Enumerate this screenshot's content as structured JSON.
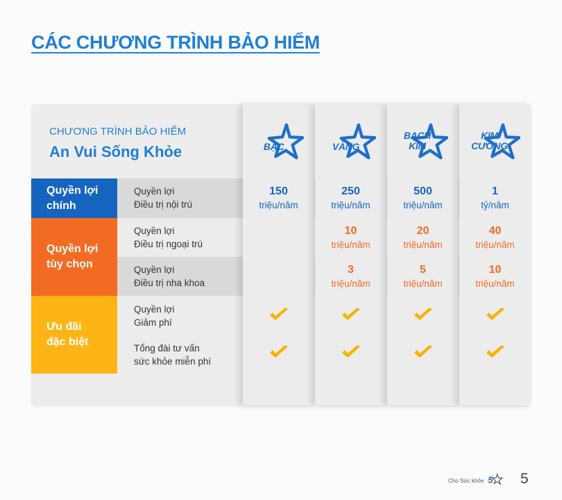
{
  "heading": "CÁC CHƯƠNG TRÌNH BẢO HIỂM",
  "header": {
    "subtitle": "CHƯƠNG TRÌNH BẢO HIỂM",
    "product_name": "An Vui Sống Khỏe"
  },
  "tiers": [
    {
      "line1": "BẠC",
      "line2": ""
    },
    {
      "line1": "VÀNG",
      "line2": ""
    },
    {
      "line1": "BẠCH",
      "line2": "KIM"
    },
    {
      "line1": "KIM",
      "line2": "CƯƠNG"
    }
  ],
  "categories": [
    {
      "line1": "Quyền lợi",
      "line2": "chính",
      "color": "#1565c0"
    },
    {
      "line1": "Quyền lợi",
      "line2": "tùy chọn",
      "color": "#f26b22"
    },
    {
      "line1": "Ưu đãi",
      "line2": "đặc biệt",
      "color": "#fdb515"
    }
  ],
  "rows": [
    {
      "label1": "Quyền lợi",
      "label2": "Điều trị nội trú",
      "values": [
        {
          "num": "150",
          "unit": "triệu/năm"
        },
        {
          "num": "250",
          "unit": "triệu/năm"
        },
        {
          "num": "500",
          "unit": "triệu/năm"
        },
        {
          "num": "1",
          "unit": "tỷ/năm"
        }
      ]
    },
    {
      "label1": "Quyền lợi",
      "label2": "Điều trị ngoại trú",
      "values": [
        {
          "num": "",
          "unit": ""
        },
        {
          "num": "10",
          "unit": "triệu/năm"
        },
        {
          "num": "20",
          "unit": "triệu/năm"
        },
        {
          "num": "40",
          "unit": "triệu/năm"
        }
      ]
    },
    {
      "label1": "Quyền lợi",
      "label2": "Điều trị nha khoa",
      "values": [
        {
          "num": "",
          "unit": ""
        },
        {
          "num": "3",
          "unit": "triệu/năm"
        },
        {
          "num": "5",
          "unit": "triệu/năm"
        },
        {
          "num": "10",
          "unit": "triệu/năm"
        }
      ]
    },
    {
      "label1": "Quyền lợi",
      "label2": "Giảm phí",
      "checks": [
        true,
        true,
        true,
        true
      ]
    },
    {
      "label1": "Tổng đài tư vấn",
      "label2": "sức khỏe miễn phí",
      "checks": [
        true,
        true,
        true,
        true
      ]
    }
  ],
  "colors": {
    "heading_blue": "#1f7fd6",
    "tier_blue": "#1e6fc9",
    "main_value_blue": "#1565c0",
    "optional_value_orange": "#f26b22",
    "check_yellow": "#f5b400"
  },
  "footer": {
    "tagline": "Cho Sức khỏe",
    "page_number": "5"
  }
}
